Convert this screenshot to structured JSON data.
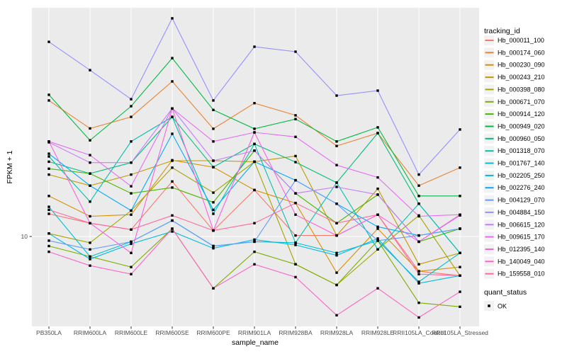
{
  "figure": {
    "y_axis": {
      "label": "FPKM + 1",
      "tick_labels": [
        "10"
      ]
    },
    "x_axis": {
      "label": "sample_name"
    },
    "legend": {
      "title": "tracking_id",
      "quant_title": "quant_status",
      "quant_label": "OK"
    },
    "colors": {
      "panel_bg": "#EBEBEB",
      "grid": "#FFFFFF",
      "tick_mark": "#333333",
      "tick_text": "#4D4D4D",
      "point": "#000000",
      "legend_key_bg": "#F2F2F2"
    }
  },
  "chart_data": {
    "type": "line",
    "title": "",
    "xlabel": "sample_name",
    "ylabel": "FPKM + 1",
    "y_scale": "log10",
    "y_tick_values": [
      10
    ],
    "ylim_approx": [
      4.3,
      95
    ],
    "grid": true,
    "legend_position": "right",
    "point_shape": "filled-square",
    "quant_status_all_points": "OK",
    "categories": [
      "PB350LA",
      "RRIM600LA",
      "RRIM600LE",
      "RRIM600SE",
      "RRIM600PE",
      "RRIM901LA",
      "RRIM928BA",
      "RRIM928LA",
      "RRIM928LE",
      "RRII105LA_Control",
      "RRII105LA_Stressed"
    ],
    "series": [
      {
        "name": "Hb_000011_100",
        "color": "#F8766D",
        "values": [
          12.5,
          11.4,
          10.7,
          17.2,
          10.6,
          15.8,
          10.1,
          10.1,
          12.4,
          7.1,
          6.8
        ]
      },
      {
        "name": "Hb_000174_060",
        "color": "#EA8331",
        "values": [
          38.2,
          29.0,
          32.5,
          46.1,
          28.9,
          37.2,
          33.0,
          24.4,
          27.7,
          16.5,
          19.7
        ]
      },
      {
        "name": "Hb_000230_090",
        "color": "#D89000",
        "values": [
          14.9,
          12.2,
          12.4,
          21.2,
          19.8,
          15.8,
          13.9,
          7.0,
          10.8,
          7.1,
          7.4
        ]
      },
      {
        "name": "Hb_000243_210",
        "color": "#C09B00",
        "values": [
          18.4,
          16.5,
          18.4,
          21.1,
          21.1,
          20.9,
          22.1,
          10.1,
          16.0,
          7.6,
          8.5
        ]
      },
      {
        "name": "Hb_000398_080",
        "color": "#A3A500",
        "values": [
          10.3,
          9.4,
          12.9,
          19.7,
          15.4,
          20.9,
          7.6,
          6.2,
          8.8,
          12.3,
          6.8
        ]
      },
      {
        "name": "Hb_000671_070",
        "color": "#7CAE00",
        "values": [
          9.1,
          8.2,
          7.4,
          10.8,
          6.0,
          8.6,
          7.6,
          6.2,
          9.6,
          5.2,
          5.0
        ]
      },
      {
        "name": "Hb_000914_120",
        "color": "#49B500",
        "values": [
          19.5,
          18.6,
          15.3,
          16.2,
          14.0,
          23.3,
          15.3,
          11.4,
          15.1,
          9.5,
          10.8
        ]
      },
      {
        "name": "Hb_000949_020",
        "color": "#00BA42",
        "values": [
          40.4,
          25.8,
          36.1,
          58.0,
          34.8,
          28.9,
          31.8,
          25.5,
          29.3,
          14.9,
          14.9
        ]
      },
      {
        "name": "Hb_000960_050",
        "color": "#00BE7D",
        "values": [
          20.9,
          18.6,
          20.7,
          32.5,
          19.8,
          24.9,
          20.8,
          17.0,
          27.7,
          13.8,
          8.5
        ]
      },
      {
        "name": "Hb_001318_070",
        "color": "#00C0AF",
        "values": [
          22.0,
          14.1,
          25.5,
          32.5,
          12.5,
          24.9,
          9.4,
          17.0,
          8.8,
          13.8,
          8.5
        ]
      },
      {
        "name": "Hb_001767_140",
        "color": "#00BFD5",
        "values": [
          13.4,
          8.2,
          9.5,
          11.7,
          9.1,
          9.5,
          9.4,
          8.5,
          9.6,
          6.4,
          8.5
        ]
      },
      {
        "name": "Hb_002205_250",
        "color": "#00B8E5",
        "values": [
          10.3,
          8.0,
          9.3,
          10.5,
          8.9,
          9.7,
          9.2,
          8.3,
          9.8,
          6.3,
          6.8
        ]
      },
      {
        "name": "Hb_002276_240",
        "color": "#00ACFC",
        "values": [
          22.6,
          16.5,
          12.9,
          27.5,
          13.0,
          20.9,
          17.4,
          13.8,
          11.0,
          10.1,
          10.8
        ]
      },
      {
        "name": "Hb_004129_070",
        "color": "#619CFF",
        "values": [
          9.6,
          8.8,
          9.5,
          11.7,
          9.1,
          9.5,
          17.4,
          13.8,
          9.6,
          10.1,
          10.8
        ]
      },
      {
        "name": "Hb_004884_150",
        "color": "#9590FF",
        "values": [
          68.1,
          51.5,
          38.7,
          85.8,
          38.2,
          64.9,
          61.8,
          40.1,
          42.1,
          18.4,
          28.7
        ]
      },
      {
        "name": "Hb_006615_120",
        "color": "#C77CFF",
        "values": [
          25.3,
          20.7,
          20.7,
          35.3,
          21.1,
          23.3,
          15.3,
          16.3,
          15.1,
          9.5,
          12.3
        ]
      },
      {
        "name": "Hb_009615_170",
        "color": "#E76BF3",
        "values": [
          25.5,
          22.3,
          16.4,
          35.3,
          25.5,
          27.9,
          26.7,
          20.2,
          17.9,
          12.2,
          12.4
        ]
      },
      {
        "name": "Hb_012395_140",
        "color": "#FA62DB",
        "values": [
          25.5,
          11.4,
          8.5,
          35.3,
          10.6,
          27.9,
          12.4,
          10.1,
          12.4,
          9.5,
          12.4
        ]
      },
      {
        "name": "Hb_140049_040",
        "color": "#FF61C9",
        "values": [
          8.6,
          7.5,
          6.9,
          10.8,
          6.0,
          7.6,
          6.7,
          4.6,
          6.0,
          4.5,
          5.8
        ]
      },
      {
        "name": "Hb_159558_010",
        "color": "#FF68A1",
        "values": [
          13.0,
          11.4,
          10.7,
          12.3,
          10.6,
          11.4,
          13.9,
          11.4,
          12.4,
          6.9,
          6.8
        ]
      }
    ]
  }
}
